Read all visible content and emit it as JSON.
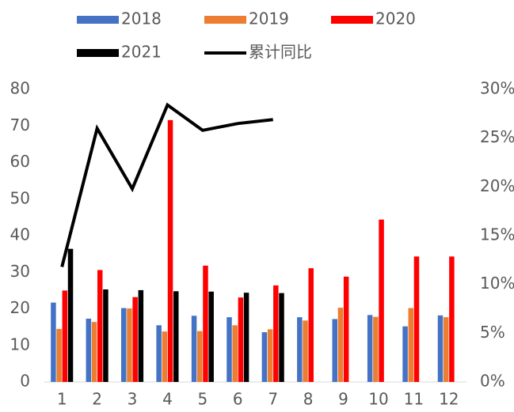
{
  "chart_data": {
    "type": "bar_line",
    "categories": [
      "1",
      "2",
      "3",
      "4",
      "5",
      "6",
      "7",
      "8",
      "9",
      "10",
      "11",
      "12"
    ],
    "series": [
      {
        "name": "2018",
        "color": "#4472c4",
        "values": [
          21.7,
          17.3,
          20.2,
          15.5,
          18.1,
          17.7,
          13.6,
          17.7,
          17.2,
          18.3,
          15.2,
          18.2
        ]
      },
      {
        "name": "2019",
        "color": "#ed7d31",
        "values": [
          14.5,
          16.4,
          20.1,
          13.8,
          13.9,
          15.5,
          14.4,
          16.8,
          20.3,
          17.8,
          20.2,
          17.7
        ]
      },
      {
        "name": "2020",
        "color": "#ff0000",
        "values": [
          25,
          30.6,
          23.2,
          71.6,
          31.8,
          23.1,
          26.4,
          31.1,
          28.8,
          44.4,
          34.3,
          34.3
        ]
      },
      {
        "name": "2021",
        "color": "#000000",
        "values": [
          36.4,
          25.3,
          25.1,
          24.8,
          24.7,
          24.4,
          24.3,
          null,
          null,
          null,
          null,
          null
        ]
      },
      {
        "name": "累计同比",
        "color": "#000000",
        "type": "line",
        "axis": "y2",
        "values": [
          11.8,
          26.0,
          19.8,
          28.4,
          25.8,
          26.5,
          26.9,
          null,
          null,
          null,
          null,
          null
        ]
      }
    ],
    "ylim": [
      0,
      80
    ],
    "yticks": [
      0,
      10,
      20,
      30,
      40,
      50,
      60,
      70,
      80
    ],
    "y2lim": [
      0,
      30
    ],
    "y2ticks": [
      {
        "value": 0,
        "label": "0%"
      },
      {
        "value": 5,
        "label": "5%"
      },
      {
        "value": 10,
        "label": "10%"
      },
      {
        "value": 15,
        "label": "15%"
      },
      {
        "value": 20,
        "label": "20%"
      },
      {
        "value": 25,
        "label": "25%"
      },
      {
        "value": 30,
        "label": "30%"
      }
    ],
    "legend": "top",
    "grid": false
  }
}
